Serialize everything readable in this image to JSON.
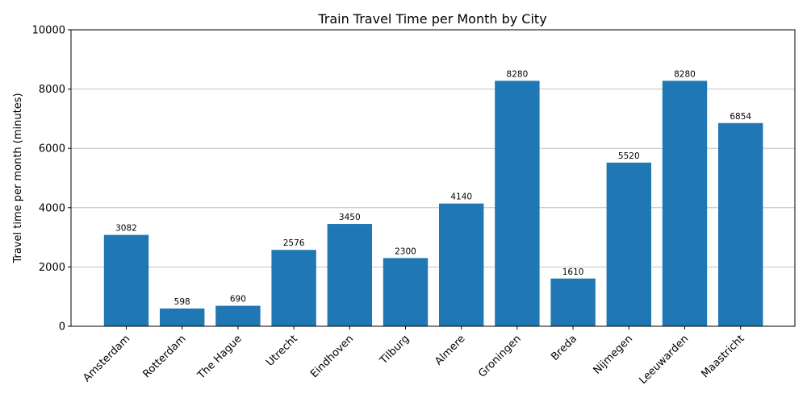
{
  "chart_data": {
    "type": "bar",
    "title": "Train Travel Time per Month by City",
    "xlabel": "",
    "ylabel": "Travel time per month (minutes)",
    "categories": [
      "Amsterdam",
      "Rotterdam",
      "The Hague",
      "Utrecht",
      "Eindhoven",
      "Tilburg",
      "Almere",
      "Groningen",
      "Breda",
      "Nijmegen",
      "Leeuwarden",
      "Maastricht"
    ],
    "values": [
      3082,
      598,
      690,
      2576,
      3450,
      2300,
      4140,
      8280,
      1610,
      5520,
      8280,
      6854
    ],
    "value_labels": [
      "3082",
      "598",
      "690",
      "2576",
      "3450",
      "2300",
      "4140",
      "8280",
      "1610",
      "5520",
      "8280",
      "6854"
    ],
    "ylim": [
      0,
      10000
    ],
    "yticks": [
      0,
      2000,
      4000,
      6000,
      8000,
      10000
    ],
    "ytick_labels": [
      "0",
      "2000",
      "4000",
      "6000",
      "8000",
      "10000"
    ],
    "grid": "y",
    "bar_color": "#1f77b4",
    "grid_color": "#b0b0b0"
  }
}
